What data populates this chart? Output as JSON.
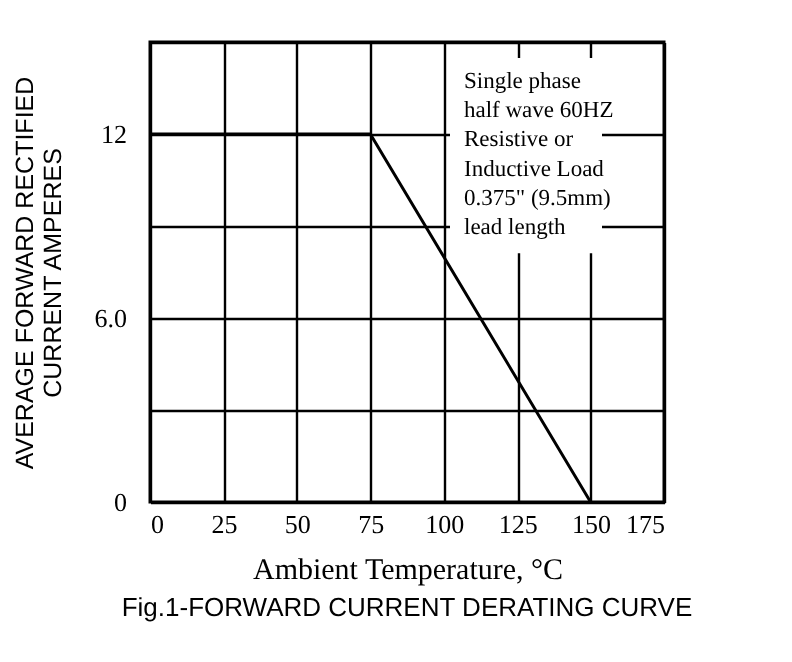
{
  "chart_data": {
    "type": "line",
    "title": "Fig.1-FORWARD CURRENT DERATING CURVE",
    "xlabel": "Ambient Temperature, °C",
    "ylabel": "AVERAGE FORWARD RECTIFIED\nCURRENT AMPERES",
    "x": [
      0,
      75,
      150
    ],
    "series": [
      {
        "color": "#000000",
        "values": [
          12,
          12,
          0
        ]
      }
    ],
    "xlim": [
      0,
      175
    ],
    "xticks": [
      0,
      25,
      50,
      75,
      100,
      125,
      150,
      175
    ],
    "ylim": [
      0,
      15
    ],
    "yticks": [
      0,
      {
        "value": 3,
        "label": null
      },
      {
        "value": 6,
        "label": "6.0"
      },
      {
        "value": 9,
        "label": null
      },
      12,
      {
        "value": 15,
        "label": null
      }
    ],
    "grid": true,
    "marker": "none",
    "line_style": "solid",
    "annotations": [
      "Single phase\nhalf  wave 60HZ\nResistive or\nInductive Load\n0.375\" (9.5mm)\nlead length"
    ]
  }
}
